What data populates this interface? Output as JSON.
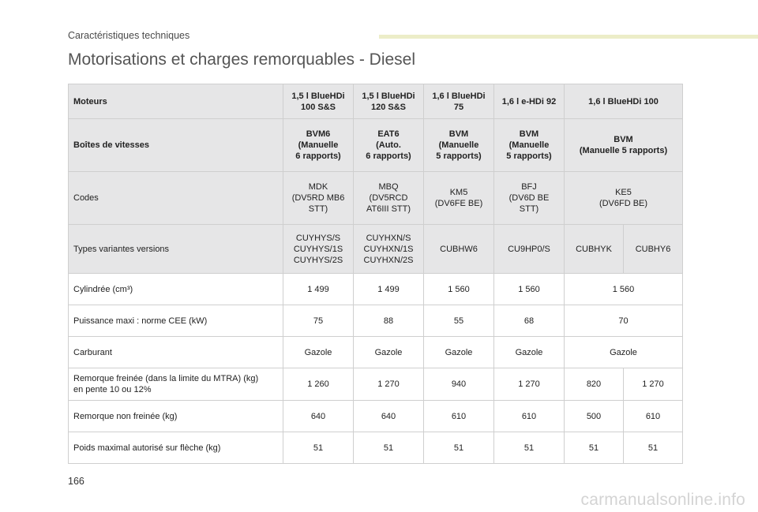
{
  "header": {
    "section": "Caractéristiques techniques"
  },
  "title": "Motorisations et charges remorquables - Diesel",
  "table": {
    "engines_label": "Moteurs",
    "engines": [
      "1,5 l BlueHDi\n100 S&S",
      "1,5 l BlueHDi\n120 S&S",
      "1,6 l BlueHDi\n75",
      "1,6 l e-HDi 92",
      "1,6 l BlueHDi 100"
    ],
    "gearbox_label": "Boîtes de vitesses",
    "gearboxes": [
      "BVM6\n(Manuelle\n6 rapports)",
      "EAT6\n(Auto.\n6 rapports)",
      "BVM\n(Manuelle\n5 rapports)",
      "BVM\n(Manuelle\n5 rapports)",
      "BVM\n(Manuelle 5 rapports)"
    ],
    "codes_label": "Codes",
    "codes": [
      "MDK\n(DV5RD MB6\nSTT)",
      "MBQ\n(DV5RCD\nAT6III STT)",
      "KM5\n(DV6FE BE)",
      "BFJ\n(DV6D BE\nSTT)",
      "KE5\n(DV6FD BE)"
    ],
    "types_label": "Types variantes versions",
    "types": [
      "CUYHYS/S\nCUYHYS/1S\nCUYHYS/2S",
      "CUYHXN/S\nCUYHXN/1S\nCUYHXN/2S",
      "CUBHW6",
      "CU9HP0/S",
      "CUBHYK",
      "CUBHY6"
    ],
    "displacement_label": "Cylindrée (cm³)",
    "displacement": [
      "1 499",
      "1 499",
      "1 560",
      "1 560",
      "1 560"
    ],
    "power_label": "Puissance maxi : norme CEE (kW)",
    "power": [
      "75",
      "88",
      "55",
      "68",
      "70"
    ],
    "fuel_label": "Carburant",
    "fuel": [
      "Gazole",
      "Gazole",
      "Gazole",
      "Gazole",
      "Gazole"
    ],
    "braked_label": "Remorque freinée (dans la limite du MTRA) (kg)\nen pente 10 ou 12%",
    "braked": [
      "1 260",
      "1 270",
      "940",
      "1 270",
      "820",
      "1 270"
    ],
    "unbraked_label": "Remorque non freinée (kg)",
    "unbraked": [
      "640",
      "640",
      "610",
      "610",
      "500",
      "610"
    ],
    "hitch_label": "Poids maximal autorisé sur flèche (kg)",
    "hitch": [
      "51",
      "51",
      "51",
      "51",
      "51",
      "51"
    ]
  },
  "footer": {
    "page_number": "166",
    "watermark": "carmanualsonline.info"
  }
}
